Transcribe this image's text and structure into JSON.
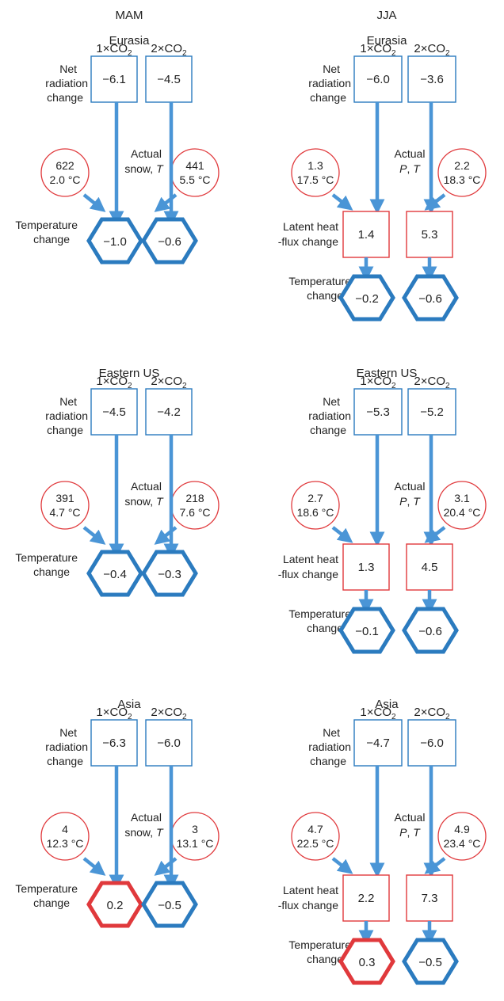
{
  "season_headers": [
    "MAM",
    "JJA"
  ],
  "co2_labels": [
    "1×CO",
    "2×CO"
  ],
  "co2_subscript": "2",
  "row_labels": {
    "net_radiation": [
      "Net",
      "radiation",
      "change"
    ],
    "temperature": [
      "Temperature",
      "change"
    ],
    "latent_heat": [
      "Latent heat",
      "-flux change"
    ]
  },
  "colors": {
    "blue": "#2b7bbf",
    "red": "#e0393c",
    "arrow": "#4a95d6"
  },
  "panels": [
    {
      "id": "mam-eurasia",
      "season": "MAM",
      "region": "Eurasia",
      "net_radiation": [
        "−6.1",
        "−4.5"
      ],
      "actual": [
        "Actual",
        "snow,",
        "T"
      ],
      "left_circle": [
        "622",
        "2.0 °C"
      ],
      "right_circle": [
        "441",
        "5.5 °C"
      ],
      "latent_heat": null,
      "temperature": [
        "−1.0",
        "−0.6"
      ],
      "temperature_colors": [
        "blue",
        "blue"
      ]
    },
    {
      "id": "jja-eurasia",
      "season": "JJA",
      "region": "Eurasia",
      "net_radiation": [
        "−6.0",
        "−3.6"
      ],
      "actual": [
        "Actual",
        "P",
        "T"
      ],
      "left_circle": [
        "1.3",
        "17.5 °C"
      ],
      "right_circle": [
        "2.2",
        "18.3 °C"
      ],
      "latent_heat": [
        "1.4",
        "5.3"
      ],
      "temperature": [
        "−0.2",
        "−0.6"
      ],
      "temperature_colors": [
        "blue",
        "blue"
      ]
    },
    {
      "id": "mam-eastern-us",
      "season": "MAM",
      "region": "Eastern US",
      "net_radiation": [
        "−4.5",
        "−4.2"
      ],
      "actual": [
        "Actual",
        "snow,",
        "T"
      ],
      "left_circle": [
        "391",
        "4.7 °C"
      ],
      "right_circle": [
        "218",
        "7.6 °C"
      ],
      "latent_heat": null,
      "temperature": [
        "−0.4",
        "−0.3"
      ],
      "temperature_colors": [
        "blue",
        "blue"
      ]
    },
    {
      "id": "jja-eastern-us",
      "season": "JJA",
      "region": "Eastern US",
      "net_radiation": [
        "−5.3",
        "−5.2"
      ],
      "actual": [
        "Actual",
        "P",
        "T"
      ],
      "left_circle": [
        "2.7",
        "18.6 °C"
      ],
      "right_circle": [
        "3.1",
        "20.4 °C"
      ],
      "latent_heat": [
        "1.3",
        "4.5"
      ],
      "temperature": [
        "−0.1",
        "−0.6"
      ],
      "temperature_colors": [
        "blue",
        "blue"
      ]
    },
    {
      "id": "mam-asia",
      "season": "MAM",
      "region": "Asia",
      "net_radiation": [
        "−6.3",
        "−6.0"
      ],
      "actual": [
        "Actual",
        "snow,",
        "T"
      ],
      "left_circle": [
        "4",
        "12.3 °C"
      ],
      "right_circle": [
        "3",
        "13.1 °C"
      ],
      "latent_heat": null,
      "temperature": [
        "0.2",
        "−0.5"
      ],
      "temperature_colors": [
        "red",
        "blue"
      ]
    },
    {
      "id": "jja-asia",
      "season": "JJA",
      "region": "Asia",
      "net_radiation": [
        "−4.7",
        "−6.0"
      ],
      "actual": [
        "Actual",
        "P",
        "T"
      ],
      "left_circle": [
        "4.7",
        "22.5 °C"
      ],
      "right_circle": [
        "4.9",
        "23.4 °C"
      ],
      "latent_heat": [
        "2.2",
        "7.3"
      ],
      "temperature": [
        "0.3",
        "−0.5"
      ],
      "temperature_colors": [
        "red",
        "blue"
      ]
    }
  ]
}
